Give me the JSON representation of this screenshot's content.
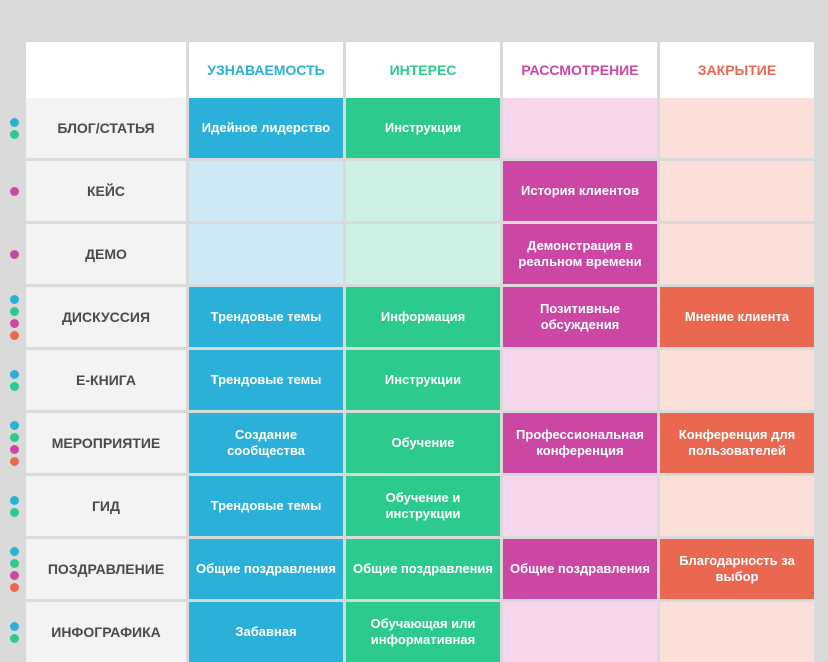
{
  "colors": {
    "c1": "#2bb0da",
    "c2": "#2cca8d",
    "c3": "#cc46a3",
    "c4": "#ea6850",
    "c1_light": "#cdeaf4",
    "c2_light": "#cdf2e5",
    "c3_light": "#f6d7ec",
    "c4_light": "#fbdfd9",
    "header_bg": "#ffffff",
    "rowlabel_bg": "#f3f3f3",
    "rowlabel_text": "#4a4a4a"
  },
  "headers": [
    "УЗНАВАЕМОСТЬ",
    "ИНТЕРЕС",
    "РАССМОТРЕНИЕ",
    "ЗАКРЫТИЕ"
  ],
  "rows": [
    {
      "label": "БЛОГ/СТАТЬЯ",
      "dots": [
        "c1",
        "c2"
      ],
      "cells": [
        "Идейное лидерство",
        "Инструкции",
        "",
        ""
      ]
    },
    {
      "label": "КЕЙС",
      "dots": [
        "c3"
      ],
      "cells": [
        "",
        "",
        "История клиентов",
        ""
      ]
    },
    {
      "label": "ДЕМО",
      "dots": [
        "c3"
      ],
      "cells": [
        "",
        "",
        "Демонстрация в реальном времени",
        ""
      ]
    },
    {
      "label": "ДИСКУССИЯ",
      "dots": [
        "c1",
        "c2",
        "c3",
        "c4"
      ],
      "cells": [
        "Трендовые темы",
        "Информация",
        "Позитивные обсуждения",
        "Мнение клиента"
      ]
    },
    {
      "label": "Е-КНИГА",
      "dots": [
        "c1",
        "c2"
      ],
      "cells": [
        "Трендовые темы",
        "Инструкции",
        "",
        ""
      ]
    },
    {
      "label": "МЕРОПРИЯТИЕ",
      "dots": [
        "c1",
        "c2",
        "c3",
        "c4"
      ],
      "cells": [
        "Создание сообщества",
        "Обучение",
        "Профессиональная конференция",
        "Конференция для пользователей"
      ]
    },
    {
      "label": "ГИД",
      "dots": [
        "c1",
        "c2"
      ],
      "cells": [
        "Трендовые темы",
        "Обучение и инструкции",
        "",
        ""
      ]
    },
    {
      "label": "ПОЗДРАВЛЕНИЕ",
      "dots": [
        "c1",
        "c2",
        "c3",
        "c4"
      ],
      "cells": [
        "Общие поздравления",
        "Общие поздравления",
        "Общие поздравления",
        "Благодарность за выбор"
      ]
    },
    {
      "label": "ИНФОГРАФИКА",
      "dots": [
        "c1",
        "c2"
      ],
      "cells": [
        "Забавная",
        "Обучающая или информативная",
        "",
        ""
      ]
    }
  ]
}
